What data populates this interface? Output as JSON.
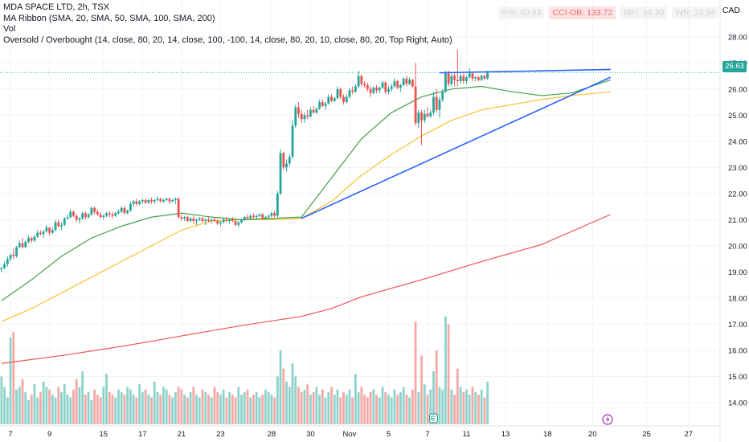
{
  "header": {
    "title": "MDA SPACE LTD, 2h, TSX",
    "indicator_ribbon": "MA Ribbon (SMA, 20, SMA, 50, SMA, 100, SMA, 200)",
    "indicator_vol": "Vol",
    "indicator_osc": "Oversold / Overbought (14, close, 80, 20, 14, close, 100, -100, 14, close, 80, 20, 10, close, 80, 20, Top Right, Auto)",
    "currency": "CAD"
  },
  "badges": [
    {
      "label": "RSI: 60.83",
      "state": "neutral"
    },
    {
      "label": "CCI-OB: 133.72",
      "state": "overbought"
    },
    {
      "label": "MFI: 55.39",
      "state": "neutral"
    },
    {
      "label": "WR: 24.94",
      "state": "neutral"
    }
  ],
  "last_price": "26.63",
  "colors": {
    "up": "#26a69a",
    "down": "#ef5350",
    "vol_up": "#8ed3cb",
    "vol_down": "#f5a9a7",
    "sma20": "#43a047",
    "sma50": "#fbc02d",
    "sma200": "#ef5350",
    "trend": "#2962ff",
    "hline": "#2ca89c",
    "axis_text": "#131722",
    "grid": "#f0f3fa"
  },
  "icons": [
    "event-e-icon",
    "flash-icon"
  ],
  "chart_data": {
    "type": "candlestick",
    "ylim": [
      13.6,
      28.3
    ],
    "y_ticks": [
      "28.00",
      "27.00",
      "26.00",
      "25.00",
      "24.00",
      "23.00",
      "22.00",
      "21.00",
      "20.00",
      "19.00",
      "18.00",
      "17.00",
      "16.00",
      "15.00",
      "14.00"
    ],
    "y_tick_values": [
      28,
      27,
      26,
      25,
      24,
      23,
      22,
      21,
      20,
      19,
      18,
      17,
      16,
      15,
      14
    ],
    "x_ticks": [
      "7",
      "9",
      "15",
      "17",
      "21",
      "23",
      "28",
      "30",
      "Nov",
      "5",
      "7",
      "11",
      "13",
      "18",
      "20",
      "25",
      "27"
    ],
    "x_tick_bar": [
      3,
      16,
      34,
      47,
      60,
      73,
      90,
      103,
      116,
      129,
      142,
      155,
      168,
      182,
      197,
      215,
      229
    ],
    "total_slots": 240,
    "candles": [
      [
        19.1,
        19.2,
        19,
        19.15
      ],
      [
        19.15,
        19.4,
        19.1,
        19.3
      ],
      [
        19.3,
        19.6,
        19.2,
        19.5
      ],
      [
        19.5,
        19.7,
        19.4,
        19.65
      ],
      [
        19.65,
        19.9,
        19.5,
        19.6
      ],
      [
        19.6,
        20,
        19.55,
        19.95
      ],
      [
        19.95,
        20.2,
        19.9,
        20.1
      ],
      [
        20.1,
        20.3,
        19.9,
        19.95
      ],
      [
        19.95,
        20.2,
        19.9,
        20.15
      ],
      [
        20.15,
        20.4,
        20.1,
        20.3
      ],
      [
        20.3,
        20.35,
        20.1,
        20.2
      ],
      [
        20.2,
        20.4,
        20.15,
        20.35
      ],
      [
        20.35,
        20.6,
        20.3,
        20.5
      ],
      [
        20.5,
        20.6,
        20.4,
        20.45
      ],
      [
        20.45,
        20.6,
        20.3,
        20.55
      ],
      [
        20.55,
        20.8,
        20.5,
        20.7
      ],
      [
        20.7,
        20.7,
        20.4,
        20.5
      ],
      [
        20.5,
        20.7,
        20.45,
        20.6
      ],
      [
        20.6,
        21,
        20.55,
        20.9
      ],
      [
        20.9,
        21,
        20.7,
        20.75
      ],
      [
        20.75,
        20.9,
        20.6,
        20.8
      ],
      [
        20.8,
        21.1,
        20.75,
        21.05
      ],
      [
        21.05,
        21.2,
        21,
        21.1
      ],
      [
        21.1,
        21.4,
        21.05,
        21.3
      ],
      [
        21.3,
        21.35,
        21.1,
        21.15
      ],
      [
        21.15,
        21.2,
        20.9,
        21
      ],
      [
        21,
        21.1,
        20.85,
        21.05
      ],
      [
        21.05,
        21.3,
        21,
        21.25
      ],
      [
        21.25,
        21.3,
        21,
        21.1
      ],
      [
        21.1,
        21.25,
        21.05,
        21.2
      ],
      [
        21.2,
        21.5,
        21.15,
        21.45
      ],
      [
        21.45,
        21.5,
        21.2,
        21.3
      ],
      [
        21.3,
        21.4,
        21.15,
        21.2
      ],
      [
        21.2,
        21.3,
        21.05,
        21.1
      ],
      [
        21.1,
        21.2,
        21,
        21.15
      ],
      [
        21.15,
        21.3,
        21.1,
        21.25
      ],
      [
        21.25,
        21.35,
        21.1,
        21.2
      ],
      [
        21.2,
        21.3,
        21.05,
        21.15
      ],
      [
        21.15,
        21.3,
        21.1,
        21.25
      ],
      [
        21.25,
        21.4,
        21.2,
        21.3
      ],
      [
        21.3,
        21.5,
        21.25,
        21.45
      ],
      [
        21.45,
        21.5,
        21.2,
        21.25
      ],
      [
        21.25,
        21.4,
        21.2,
        21.35
      ],
      [
        21.35,
        21.7,
        21.3,
        21.6
      ],
      [
        21.6,
        21.75,
        21.5,
        21.7
      ],
      [
        21.7,
        21.8,
        21.55,
        21.6
      ],
      [
        21.6,
        21.75,
        21.55,
        21.7
      ],
      [
        21.7,
        21.8,
        21.6,
        21.75
      ],
      [
        21.75,
        21.8,
        21.6,
        21.65
      ],
      [
        21.65,
        21.8,
        21.6,
        21.75
      ],
      [
        21.75,
        21.85,
        21.6,
        21.7
      ],
      [
        21.7,
        21.8,
        21.6,
        21.75
      ],
      [
        21.75,
        21.9,
        21.7,
        21.8
      ],
      [
        21.8,
        21.85,
        21.65,
        21.7
      ],
      [
        21.7,
        21.8,
        21.65,
        21.75
      ],
      [
        21.75,
        21.85,
        21.7,
        21.8
      ],
      [
        21.8,
        21.85,
        21.6,
        21.7
      ],
      [
        21.7,
        21.8,
        21.65,
        21.75
      ],
      [
        21.75,
        21.85,
        21.6,
        21.8
      ],
      [
        21.8,
        21.85,
        21.05,
        21.1
      ],
      [
        21.1,
        21.2,
        20.95,
        21.05
      ],
      [
        21.05,
        21.15,
        20.95,
        21.1
      ],
      [
        21.1,
        21.15,
        20.9,
        20.95
      ],
      [
        20.95,
        21.1,
        20.9,
        21.05
      ],
      [
        21.05,
        21.15,
        20.85,
        20.95
      ],
      [
        20.95,
        21.05,
        20.8,
        21
      ],
      [
        21,
        21.1,
        20.95,
        21.05
      ],
      [
        21.05,
        21.1,
        20.9,
        20.95
      ],
      [
        20.95,
        21.05,
        20.8,
        21
      ],
      [
        21,
        21.1,
        20.9,
        20.95
      ],
      [
        20.95,
        21.05,
        20.85,
        21
      ],
      [
        21,
        21.1,
        20.9,
        20.95
      ],
      [
        20.95,
        21,
        20.8,
        20.85
      ],
      [
        20.85,
        20.95,
        20.75,
        20.9
      ],
      [
        20.9,
        21.05,
        20.85,
        21
      ],
      [
        21,
        21.1,
        20.9,
        20.95
      ],
      [
        20.95,
        21.05,
        20.85,
        21
      ],
      [
        21,
        21.1,
        20.9,
        20.95
      ],
      [
        20.95,
        21,
        20.75,
        20.8
      ],
      [
        20.8,
        20.95,
        20.7,
        20.9
      ],
      [
        20.9,
        21.05,
        20.85,
        21
      ],
      [
        21,
        21.15,
        20.95,
        21.1
      ],
      [
        21.1,
        21.2,
        21,
        21.05
      ],
      [
        21.05,
        21.2,
        21,
        21.15
      ],
      [
        21.15,
        21.25,
        21.05,
        21.1
      ],
      [
        21.1,
        21.2,
        21,
        21.15
      ],
      [
        21.15,
        21.25,
        21.1,
        21.2
      ],
      [
        21.2,
        21.25,
        21,
        21.05
      ],
      [
        21.05,
        21.15,
        21,
        21.1
      ],
      [
        21.1,
        21.2,
        21,
        21.15
      ],
      [
        21.15,
        21.3,
        21.1,
        21.25
      ],
      [
        21.25,
        21.35,
        21.1,
        21.15
      ],
      [
        21.15,
        22.1,
        21.1,
        22
      ],
      [
        22,
        23.7,
        21.95,
        23.55
      ],
      [
        23.55,
        23.6,
        22.9,
        23
      ],
      [
        23,
        23.3,
        22.85,
        23.15
      ],
      [
        23.15,
        23.5,
        23.05,
        23.4
      ],
      [
        23.4,
        24.8,
        23.35,
        24.6
      ],
      [
        24.6,
        25.4,
        24.5,
        25.3
      ],
      [
        25.3,
        25.5,
        24.9,
        25.05
      ],
      [
        25.05,
        25.2,
        24.7,
        24.85
      ],
      [
        24.85,
        25.1,
        24.7,
        25
      ],
      [
        25,
        25.2,
        24.85,
        24.95
      ],
      [
        24.95,
        25.3,
        24.9,
        25.2
      ],
      [
        25.2,
        25.35,
        25.05,
        25.1
      ],
      [
        25.1,
        25.3,
        25.05,
        25.25
      ],
      [
        25.25,
        25.6,
        25.2,
        25.5
      ],
      [
        25.5,
        25.6,
        25.3,
        25.35
      ],
      [
        25.35,
        25.5,
        25.2,
        25.45
      ],
      [
        25.45,
        25.8,
        25.4,
        25.7
      ],
      [
        25.7,
        25.8,
        25.5,
        25.55
      ],
      [
        25.55,
        25.7,
        25.5,
        25.65
      ],
      [
        25.65,
        26.1,
        25.6,
        26
      ],
      [
        26,
        26.05,
        25.6,
        25.7
      ],
      [
        25.7,
        25.8,
        25.4,
        25.5
      ],
      [
        25.5,
        25.8,
        25.45,
        25.7
      ],
      [
        25.7,
        26.05,
        25.65,
        25.95
      ],
      [
        25.95,
        26.1,
        25.8,
        25.9
      ],
      [
        25.9,
        26.2,
        25.85,
        26.1
      ],
      [
        26.1,
        26.7,
        26.05,
        26.5
      ],
      [
        26.5,
        26.55,
        26.1,
        26.2
      ],
      [
        26.2,
        26.3,
        26.05,
        26.15
      ],
      [
        26.15,
        26.25,
        25.9,
        26
      ],
      [
        26,
        26.1,
        25.7,
        25.85
      ],
      [
        25.85,
        26.1,
        25.8,
        26.05
      ],
      [
        26.05,
        26.15,
        25.85,
        25.95
      ],
      [
        25.95,
        26.1,
        25.85,
        26.05
      ],
      [
        26.05,
        26.3,
        26,
        26.25
      ],
      [
        26.25,
        26.3,
        25.8,
        25.9
      ],
      [
        25.9,
        26.1,
        25.8,
        26
      ],
      [
        26,
        26.2,
        25.9,
        26.1
      ],
      [
        26.1,
        26.4,
        26.05,
        26.3
      ],
      [
        26.3,
        26.35,
        26,
        26.05
      ],
      [
        26.05,
        26.2,
        25.9,
        26.15
      ],
      [
        26.15,
        26.45,
        26.1,
        26.4
      ],
      [
        26.4,
        26.5,
        26.1,
        26.2
      ],
      [
        26.2,
        26.45,
        26.15,
        26.35
      ],
      [
        26.35,
        26.4,
        26.05,
        26.1
      ],
      [
        26.1,
        27,
        24.6,
        24.7
      ],
      [
        24.7,
        25.2,
        24.5,
        25.1
      ],
      [
        25.1,
        25.2,
        23.85,
        24.8
      ],
      [
        24.8,
        25.2,
        24.7,
        25.05
      ],
      [
        25.05,
        25.3,
        24.9,
        24.95
      ],
      [
        24.95,
        25.2,
        24.9,
        25.1
      ],
      [
        25.1,
        25.9,
        25,
        25.7
      ],
      [
        25.7,
        26,
        25.1,
        25.2
      ],
      [
        25.2,
        25.7,
        24.9,
        25.6
      ],
      [
        25.6,
        26,
        25.5,
        25.9
      ],
      [
        25.9,
        26.7,
        25.85,
        26.6
      ],
      [
        26.6,
        26.7,
        26.1,
        26.2
      ],
      [
        26.2,
        26.6,
        26.1,
        26.5
      ],
      [
        26.5,
        26.6,
        26.1,
        26.35
      ],
      [
        26.35,
        27.5,
        26.1,
        26.3
      ],
      [
        26.3,
        26.6,
        26.2,
        26.5
      ],
      [
        26.5,
        26.6,
        26.2,
        26.3
      ],
      [
        26.3,
        26.5,
        26.2,
        26.45
      ],
      [
        26.45,
        26.8,
        26.4,
        26.6
      ],
      [
        26.6,
        26.65,
        26.3,
        26.4
      ],
      [
        26.4,
        26.5,
        26.3,
        26.45
      ],
      [
        26.45,
        26.5,
        26.3,
        26.35
      ],
      [
        26.35,
        26.55,
        26.3,
        26.5
      ],
      [
        26.5,
        26.55,
        26.35,
        26.4
      ],
      [
        26.4,
        26.7,
        26.35,
        26.63
      ]
    ],
    "volume_ylim": [
      13.6,
      17.6
    ],
    "volumes": [
      15.0,
      14.6,
      14.2,
      16.5,
      16.7,
      14.5,
      14.6,
      14.9,
      14.4,
      14.1,
      14.3,
      14.7,
      14.2,
      14.4,
      14.8,
      14.6,
      14.5,
      14.3,
      14.2,
      14.6,
      14.4,
      14.7,
      14.3,
      14.2,
      14.5,
      14.9,
      14.6,
      15.2,
      14.3,
      14.4,
      14.1,
      14.5,
      14.3,
      14.2,
      14.6,
      15.1,
      14.4,
      14.3,
      14.2,
      14.5,
      14.4,
      14.3,
      14.6,
      14.5,
      14.3,
      14.2,
      14.7,
      14.4,
      14.5,
      14.3,
      14.2,
      14.8,
      14.4,
      14.3,
      14.6,
      14.5,
      14.3,
      14.2,
      14.4,
      14.6,
      14.5,
      14.3,
      14.2,
      14.4,
      14.6,
      14.3,
      14.2,
      14.5,
      14.4,
      14.3,
      14.2,
      14.6,
      14.4,
      14.3,
      14.5,
      14.2,
      14.4,
      14.3,
      14.2,
      14.6,
      14.3,
      14.4,
      14.5,
      14.2,
      14.3,
      14.4,
      14.2,
      14.3,
      14.5,
      14.4,
      14.3,
      14.2,
      15.0,
      16.0,
      15.3,
      14.8,
      14.6,
      15.5,
      15.0,
      14.6,
      14.4,
      14.5,
      14.7,
      14.3,
      14.4,
      14.6,
      14.3,
      14.5,
      14.2,
      14.4,
      14.6,
      14.3,
      14.5,
      14.2,
      14.4,
      14.3,
      14.5,
      14.2,
      15.1,
      14.4,
      14.6,
      14.3,
      14.2,
      14.4,
      14.5,
      14.3,
      14.2,
      14.6,
      14.4,
      14.3,
      14.2,
      14.5,
      14.3,
      14.4,
      14.6,
      14.3,
      14.2,
      14.5,
      17.1,
      14.4,
      15.8,
      14.7,
      14.3,
      14.5,
      15.2,
      16.0,
      14.6,
      14.5,
      17.3,
      17.0,
      14.5,
      14.3,
      15.3,
      14.6,
      14.4,
      14.5,
      14.3,
      14.6,
      14.4,
      14.3,
      14.5,
      14.2,
      14.8
    ],
    "sma20": [
      [
        0,
        17.9
      ],
      [
        10,
        18.7
      ],
      [
        20,
        19.6
      ],
      [
        30,
        20.3
      ],
      [
        40,
        20.75
      ],
      [
        50,
        21.1
      ],
      [
        60,
        21.25
      ],
      [
        70,
        21.1
      ],
      [
        80,
        21.0
      ],
      [
        90,
        21.05
      ],
      [
        100,
        21.1
      ],
      [
        110,
        22.6
      ],
      [
        120,
        24.1
      ],
      [
        130,
        25.1
      ],
      [
        140,
        25.7
      ],
      [
        150,
        26.0
      ],
      [
        160,
        26.1
      ],
      [
        170,
        25.9
      ],
      [
        180,
        25.75
      ],
      [
        190,
        25.85
      ],
      [
        203,
        26.35
      ]
    ],
    "sma50": [
      [
        0,
        17.1
      ],
      [
        10,
        17.6
      ],
      [
        20,
        18.2
      ],
      [
        30,
        18.8
      ],
      [
        40,
        19.4
      ],
      [
        50,
        20.0
      ],
      [
        60,
        20.6
      ],
      [
        70,
        20.95
      ],
      [
        80,
        21.0
      ],
      [
        90,
        21.0
      ],
      [
        100,
        21.05
      ],
      [
        110,
        21.7
      ],
      [
        120,
        22.7
      ],
      [
        130,
        23.5
      ],
      [
        140,
        24.2
      ],
      [
        150,
        24.8
      ],
      [
        160,
        25.2
      ],
      [
        170,
        25.4
      ],
      [
        180,
        25.6
      ],
      [
        190,
        25.75
      ],
      [
        203,
        25.9
      ]
    ],
    "sma200": [
      [
        0,
        15.5
      ],
      [
        20,
        15.8
      ],
      [
        40,
        16.15
      ],
      [
        60,
        16.55
      ],
      [
        80,
        16.95
      ],
      [
        100,
        17.3
      ],
      [
        110,
        17.6
      ],
      [
        120,
        18.05
      ],
      [
        140,
        18.7
      ],
      [
        160,
        19.4
      ],
      [
        180,
        20.05
      ],
      [
        203,
        21.2
      ]
    ],
    "trendlines": [
      {
        "from": [
          100,
          21.05
        ],
        "to": [
          203,
          26.45
        ]
      },
      {
        "from": [
          146,
          26.62
        ],
        "to": [
          203,
          26.75
        ]
      }
    ],
    "hline": 26.63
  }
}
